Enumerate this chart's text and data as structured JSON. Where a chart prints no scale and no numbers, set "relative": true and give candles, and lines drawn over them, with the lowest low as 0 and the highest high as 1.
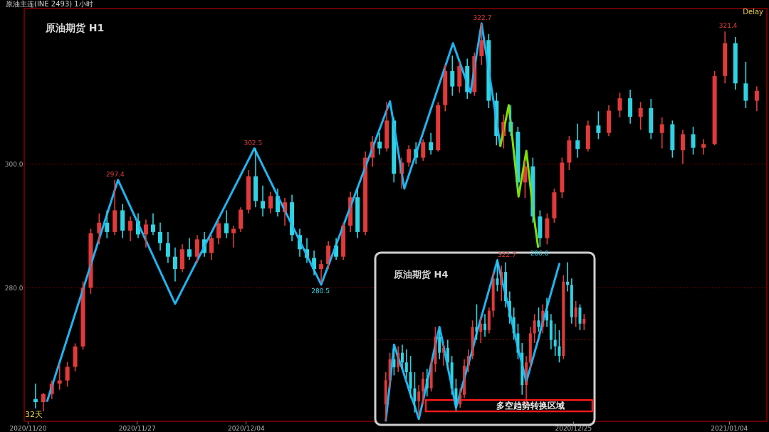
{
  "chart_data": [
    {
      "type": "candlestick",
      "title": "原油期货 H1",
      "annotations": [
        "原油主连(INE 2493)  1小时",
        "Delay",
        "32天",
        {
          "text": "297.4",
          "x": "2020-11-25T19:00",
          "y": 297.4
        },
        {
          "text": "302.5",
          "x": "2020-12-04T13:00",
          "y": 302.5
        },
        {
          "text": "280.5",
          "x": "2020-12-08T20:00",
          "y": 280.5
        },
        {
          "text": "322.7",
          "x": "2020-12-19T03:00",
          "y": 322.7
        },
        {
          "text": "286.6",
          "x": "2020-12-22T18:00",
          "y": 286.6
        },
        {
          "text": "321.4",
          "x": "2021-01-03T18:00",
          "y": 321.4
        }
      ],
      "x": [
        "2020-11-20T12:00",
        "2020-11-21T00:00",
        "2020-11-21T13:00",
        "2020-11-22T01:00",
        "2020-11-22T13:00",
        "2020-11-23T01:00",
        "2020-11-23T13:00",
        "2020-11-24T01:00",
        "2020-11-24T14:00",
        "2020-11-25T02:00",
        "2020-11-25T14:00",
        "2020-11-26T02:00",
        "2020-11-26T14:00",
        "2020-11-27T02:00",
        "2020-11-27T14:00",
        "2020-11-28T01:00",
        "2020-11-28T12:00",
        "2020-11-29T00:00",
        "2020-11-29T11:00",
        "2020-11-29T22:00",
        "2020-11-30T09:00",
        "2020-11-30T21:00",
        "2020-12-01T08:00",
        "2020-12-01T19:00",
        "2020-12-02T06:00",
        "2020-12-02T18:00",
        "2020-12-03T05:00",
        "2020-12-03T16:00",
        "2020-12-04T04:00",
        "2020-12-04T15:00",
        "2020-12-05T02:00",
        "2020-12-05T14:00",
        "2020-12-06T01:00",
        "2020-12-06T12:00",
        "2020-12-06T23:00",
        "2020-12-07T11:00",
        "2020-12-07T22:00",
        "2020-12-08T09:00",
        "2020-12-08T20:00",
        "2020-12-09T07:00",
        "2020-12-09T19:00",
        "2020-12-10T06:00",
        "2020-12-10T17:00",
        "2020-12-11T04:00",
        "2020-12-11T16:00",
        "2020-12-12T03:00",
        "2020-12-12T14:00",
        "2020-12-13T01:00",
        "2020-12-13T12:00",
        "2020-12-14T00:00",
        "2020-12-14T11:00",
        "2020-12-14T22:00",
        "2020-12-15T09:00",
        "2020-12-15T21:00",
        "2020-12-16T08:00",
        "2020-12-16T19:00",
        "2020-12-17T06:00",
        "2020-12-17T17:00",
        "2020-12-18T05:00",
        "2020-12-18T16:00",
        "2020-12-19T03:00",
        "2020-12-19T14:00",
        "2020-12-20T02:00",
        "2020-12-20T13:00",
        "2020-12-21T00:00",
        "2020-12-21T11:00",
        "2020-12-21T22:00",
        "2020-12-22T10:00",
        "2020-12-22T21:00",
        "2020-12-23T08:00",
        "2020-12-23T19:00",
        "2020-12-24T07:00",
        "2020-12-24T18:00",
        "2020-12-25T07:00",
        "2020-12-25T23:00",
        "2020-12-26T15:00",
        "2020-12-27T07:00",
        "2020-12-28T00:00",
        "2020-12-28T16:00",
        "2020-12-29T08:00",
        "2020-12-30T00:00",
        "2020-12-30T17:00",
        "2020-12-31T09:00",
        "2021-01-01T01:00",
        "2021-01-01T17:00",
        "2021-01-02T09:00",
        "2021-01-03T02:00",
        "2021-01-03T18:00",
        "2021-01-04T10:00",
        "2021-01-05T02:00",
        "2021-01-05T19:00"
      ],
      "ohlc": [
        [
          262.0,
          264.5,
          260.5,
          261.5
        ],
        [
          261.5,
          263.0,
          260.0,
          262.8
        ],
        [
          262.8,
          265.0,
          262.0,
          264.5
        ],
        [
          264.5,
          267.5,
          263.5,
          265.0
        ],
        [
          265.0,
          268.0,
          264.0,
          267.2
        ],
        [
          267.2,
          271.0,
          266.5,
          270.5
        ],
        [
          270.5,
          281.0,
          270.0,
          280.0
        ],
        [
          280.0,
          289.5,
          279.0,
          288.8
        ],
        [
          288.8,
          292.0,
          287.0,
          290.5
        ],
        [
          290.5,
          292.5,
          288.0,
          289.0
        ],
        [
          289.0,
          297.4,
          288.5,
          292.5
        ],
        [
          292.5,
          293.5,
          288.0,
          289.2
        ],
        [
          289.2,
          291.5,
          287.5,
          290.8
        ],
        [
          290.8,
          292.0,
          288.0,
          288.6
        ],
        [
          288.6,
          291.0,
          286.5,
          290.2
        ],
        [
          290.2,
          292.0,
          288.5,
          289.0
        ],
        [
          289.0,
          290.5,
          286.0,
          287.2
        ],
        [
          287.2,
          289.0,
          284.0,
          285.0
        ],
        [
          285.0,
          286.5,
          281.0,
          283.0
        ],
        [
          283.0,
          287.0,
          282.5,
          286.2
        ],
        [
          286.2,
          288.0,
          284.5,
          285.0
        ],
        [
          285.0,
          288.5,
          284.0,
          287.8
        ],
        [
          287.8,
          289.0,
          285.0,
          285.6
        ],
        [
          285.6,
          288.5,
          284.5,
          288.0
        ],
        [
          288.0,
          291.0,
          287.0,
          290.4
        ],
        [
          290.4,
          292.5,
          288.0,
          288.8
        ],
        [
          288.8,
          290.0,
          286.5,
          289.5
        ],
        [
          289.5,
          293.0,
          289.0,
          292.6
        ],
        [
          292.6,
          299.0,
          292.0,
          298.0
        ],
        [
          298.0,
          302.5,
          293.0,
          294.0
        ],
        [
          294.0,
          296.5,
          291.5,
          292.8
        ],
        [
          292.8,
          295.5,
          292.0,
          294.8
        ],
        [
          294.8,
          296.0,
          291.5,
          292.2
        ],
        [
          292.2,
          294.5,
          290.0,
          293.8
        ],
        [
          293.8,
          295.0,
          287.5,
          288.5
        ],
        [
          288.5,
          289.5,
          285.0,
          286.2
        ],
        [
          286.2,
          288.0,
          284.0,
          284.8
        ],
        [
          284.8,
          286.0,
          282.0,
          283.0
        ],
        [
          283.0,
          284.5,
          280.8,
          283.8
        ],
        [
          283.8,
          287.5,
          283.0,
          286.8
        ],
        [
          286.8,
          288.0,
          284.5,
          285.0
        ],
        [
          285.0,
          290.5,
          284.5,
          290.0
        ],
        [
          290.0,
          295.5,
          289.0,
          294.6
        ],
        [
          294.6,
          296.0,
          288.0,
          289.0
        ],
        [
          289.0,
          302.0,
          288.5,
          301.0
        ],
        [
          301.0,
          304.5,
          299.5,
          303.6
        ],
        [
          303.6,
          305.0,
          301.5,
          302.5
        ],
        [
          302.5,
          310.0,
          302.0,
          307.0
        ],
        [
          307.0,
          307.5,
          297.0,
          298.4
        ],
        [
          298.4,
          301.0,
          296.0,
          300.2
        ],
        [
          300.2,
          303.0,
          299.5,
          302.4
        ],
        [
          302.4,
          303.5,
          300.0,
          301.0
        ],
        [
          301.0,
          304.0,
          300.5,
          303.5
        ],
        [
          303.5,
          305.0,
          301.5,
          302.2
        ],
        [
          302.2,
          310.0,
          302.0,
          309.5
        ],
        [
          309.5,
          316.0,
          308.5,
          315.0
        ],
        [
          315.0,
          317.5,
          311.0,
          312.5
        ],
        [
          312.5,
          316.5,
          311.5,
          315.8
        ],
        [
          315.8,
          317.0,
          310.5,
          311.6
        ],
        [
          311.6,
          318.0,
          311.0,
          317.4
        ],
        [
          317.4,
          322.7,
          316.0,
          320.0
        ],
        [
          320.0,
          321.0,
          309.0,
          310.2
        ],
        [
          310.2,
          311.5,
          303.0,
          304.5
        ],
        [
          304.5,
          308.0,
          302.5,
          306.8
        ],
        [
          306.8,
          309.5,
          304.5,
          305.2
        ],
        [
          305.2,
          306.0,
          296.0,
          297.0
        ],
        [
          297.0,
          300.5,
          294.5,
          299.6
        ],
        [
          299.6,
          301.0,
          290.5,
          291.5
        ],
        [
          291.5,
          292.5,
          286.6,
          288.0
        ],
        [
          288.0,
          292.0,
          287.0,
          291.2
        ],
        [
          291.2,
          296.0,
          290.5,
          295.4
        ],
        [
          295.4,
          301.0,
          294.5,
          300.2
        ],
        [
          300.2,
          304.5,
          299.0,
          303.8
        ],
        [
          303.8,
          306.5,
          301.0,
          302.4
        ],
        [
          302.4,
          307.0,
          302.0,
          306.2
        ],
        [
          306.2,
          308.5,
          304.0,
          305.0
        ],
        [
          305.0,
          309.5,
          304.5,
          308.6
        ],
        [
          308.6,
          311.5,
          307.5,
          310.6
        ],
        [
          310.6,
          312.0,
          306.5,
          307.6
        ],
        [
          307.6,
          310.0,
          305.5,
          309.0
        ],
        [
          309.0,
          310.5,
          304.0,
          305.0
        ],
        [
          305.0,
          307.5,
          302.5,
          306.4
        ],
        [
          306.4,
          307.0,
          301.0,
          302.2
        ],
        [
          302.2,
          305.5,
          300.0,
          304.8
        ],
        [
          304.8,
          306.0,
          301.5,
          302.6
        ],
        [
          302.6,
          304.0,
          301.5,
          303.2
        ],
        [
          303.2,
          315.0,
          303.0,
          314.2
        ],
        [
          314.2,
          321.4,
          313.0,
          319.5
        ],
        [
          319.5,
          320.5,
          312.0,
          313.0
        ],
        [
          313.0,
          316.5,
          309.0,
          310.2
        ],
        [
          310.2,
          312.5,
          308.5,
          311.8
        ]
      ],
      "series": [
        {
          "type": "line",
          "color": "#1eb4f0",
          "x": [
            "2020-11-21T06:00",
            "2020-11-25T19:00",
            "2020-11-29T11:00",
            "2020-12-04T13:00",
            "2020-12-08T20:00",
            "2020-12-13T06:00",
            "2020-12-14T04:00",
            "2020-12-17T07:00",
            "2020-12-18T10:00",
            "2020-12-19T03:00",
            "2020-12-20T08:00"
          ],
          "values": [
            261.7,
            297.4,
            277.4,
            302.5,
            280.5,
            310.1,
            296.0,
            319.5,
            311.5,
            322.7,
            302.9
          ]
        },
        {
          "type": "line",
          "color": "#7fe000",
          "x": [
            "2020-12-20T08:00",
            "2020-12-20T21:00",
            "2020-12-21T12:00",
            "2020-12-22T00:00",
            "2020-12-22T11:00",
            "2020-12-22T18:00"
          ],
          "values": [
            302.9,
            309.5,
            294.7,
            302.1,
            292.0,
            286.6
          ]
        }
      ],
      "xlim": [
        "2020-11-20T00:00",
        "2021-01-06T05:00"
      ],
      "xticks": [
        {
          "value": "2020-11-20",
          "label": "2020/11/20"
        },
        {
          "value": "2020-11-27",
          "label": "2020/11/27"
        },
        {
          "value": "2020-12-04",
          "label": "2020/12/04"
        },
        {
          "value": "2020-12-25",
          "label": "2020/12/25"
        },
        {
          "value": "2021-01-04",
          "label": "2021/01/04"
        }
      ],
      "ylim": [
        258.4,
        325.1
      ],
      "yticks": [
        {
          "value": 280,
          "label": "280.0"
        },
        {
          "value": 300,
          "label": "300.0"
        }
      ],
      "grid": "y"
    },
    {
      "type": "candlestick",
      "title": "原油期货 H4",
      "relative": true,
      "annotations": [
        "322.7",
        "多空趋势转换区域"
      ],
      "categories": [
        null,
        null,
        null,
        null,
        null,
        null,
        null,
        null,
        null,
        null,
        null,
        null,
        null,
        null,
        null,
        null,
        null,
        null,
        null,
        null,
        null,
        null,
        null,
        null,
        null,
        null,
        null,
        null,
        null,
        null,
        null,
        null,
        null,
        null,
        null,
        null,
        null,
        null,
        null,
        null,
        null,
        null,
        null,
        null,
        null,
        null,
        null,
        null,
        null
      ],
      "ohlc": [
        [
          0.1,
          0.3,
          0.0,
          0.25
        ],
        [
          0.25,
          0.42,
          0.2,
          0.38
        ],
        [
          0.38,
          0.45,
          0.28,
          0.33
        ],
        [
          0.33,
          0.46,
          0.3,
          0.42
        ],
        [
          0.42,
          0.47,
          0.32,
          0.36
        ],
        [
          0.36,
          0.44,
          0.26,
          0.3
        ],
        [
          0.3,
          0.4,
          0.14,
          0.2
        ],
        [
          0.2,
          0.3,
          0.05,
          0.12
        ],
        [
          0.12,
          0.22,
          0.03,
          0.18
        ],
        [
          0.18,
          0.3,
          0.1,
          0.26
        ],
        [
          0.26,
          0.32,
          0.15,
          0.2
        ],
        [
          0.2,
          0.38,
          0.18,
          0.35
        ],
        [
          0.35,
          0.58,
          0.3,
          0.52
        ],
        [
          0.52,
          0.56,
          0.38,
          0.42
        ],
        [
          0.42,
          0.48,
          0.34,
          0.45
        ],
        [
          0.45,
          0.5,
          0.32,
          0.36
        ],
        [
          0.36,
          0.4,
          0.16,
          0.2
        ],
        [
          0.2,
          0.26,
          0.06,
          0.1
        ],
        [
          0.1,
          0.2,
          0.08,
          0.16
        ],
        [
          0.16,
          0.38,
          0.14,
          0.34
        ],
        [
          0.34,
          0.44,
          0.3,
          0.4
        ],
        [
          0.4,
          0.62,
          0.38,
          0.58
        ],
        [
          0.58,
          0.72,
          0.5,
          0.55
        ],
        [
          0.55,
          0.64,
          0.48,
          0.6
        ],
        [
          0.6,
          0.66,
          0.52,
          0.56
        ],
        [
          0.56,
          0.7,
          0.54,
          0.68
        ],
        [
          0.68,
          0.92,
          0.64,
          0.88
        ],
        [
          0.88,
          1.0,
          0.8,
          0.84
        ],
        [
          0.84,
          0.96,
          0.74,
          0.92
        ],
        [
          0.92,
          0.98,
          0.7,
          0.74
        ],
        [
          0.74,
          0.8,
          0.6,
          0.64
        ],
        [
          0.64,
          0.7,
          0.5,
          0.54
        ],
        [
          0.54,
          0.6,
          0.38,
          0.42
        ],
        [
          0.42,
          0.48,
          0.16,
          0.22
        ],
        [
          0.22,
          0.4,
          0.1,
          0.36
        ],
        [
          0.36,
          0.58,
          0.32,
          0.54
        ],
        [
          0.54,
          0.66,
          0.48,
          0.62
        ],
        [
          0.62,
          0.7,
          0.55,
          0.58
        ],
        [
          0.58,
          0.72,
          0.54,
          0.68
        ],
        [
          0.68,
          0.76,
          0.58,
          0.62
        ],
        [
          0.62,
          0.66,
          0.44,
          0.5
        ],
        [
          0.5,
          0.6,
          0.4,
          0.46
        ],
        [
          0.46,
          0.56,
          0.36,
          0.4
        ],
        [
          0.4,
          0.9,
          0.38,
          0.86
        ],
        [
          0.86,
          0.98,
          0.8,
          0.84
        ],
        [
          0.84,
          0.88,
          0.6,
          0.64
        ],
        [
          0.64,
          0.74,
          0.58,
          0.7
        ],
        [
          0.7,
          0.72,
          0.56,
          0.6
        ],
        [
          0.6,
          0.66,
          0.56,
          0.63
        ]
      ],
      "series": [
        {
          "type": "line",
          "color": "#1eb4f0",
          "values": [
            0.0,
            0.23,
            0.47,
            0.39,
            0.32,
            0.24,
            0.16,
            0.09,
            0.01,
            0.12,
            0.24,
            0.35,
            0.47,
            0.58,
            0.46,
            0.33,
            0.21,
            0.08,
            0.17,
            0.26,
            0.35,
            0.44,
            0.54,
            0.63,
            0.72,
            0.81,
            0.9,
            0.99,
            0.88,
            0.78,
            0.67,
            0.56,
            0.45,
            0.35,
            0.24,
            0.33,
            0.42,
            0.51,
            0.61,
            0.7,
            0.79,
            0.88,
            0.97,
            null,
            null,
            null,
            null,
            null,
            null
          ]
        }
      ],
      "ref_lines": [
        {
          "axis": "y",
          "value": 0.5,
          "color": "#8b0000",
          "line_style": "dotted"
        }
      ]
    }
  ]
}
